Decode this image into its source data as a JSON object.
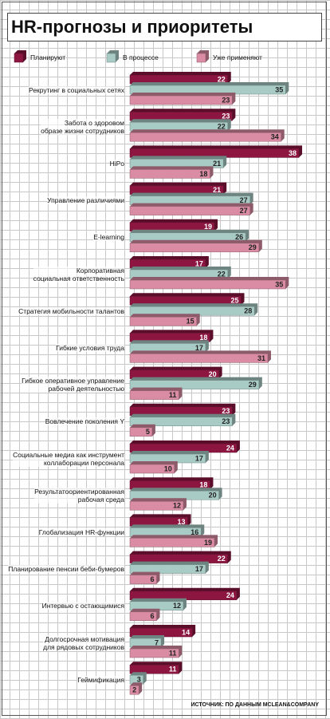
{
  "chart_data": {
    "type": "bar",
    "orientation": "horizontal",
    "title": "HR-прогнозы и приоритеты",
    "source": "ИСТОЧНИК: ПО ДАННЫМ MCLEAN&COMPANY",
    "categories": [
      "Рекрутинг в социальных сетях",
      "Забота о здоровом\nобразе жизни сотрудников",
      "HiPo",
      "Управление различиями",
      "E-learning",
      "Корпоративная\nсоциальная ответственность",
      "Стратегия мобильности талантов",
      "Гибкие условия труда",
      "Гибкое оперативное управление\nрабочей деятельностью",
      "Вовлечение поколения Y",
      "Социальные медиа как инструмент\nколлаборации персонала",
      "Результатоориентированная\nрабочая среда",
      "Глобализация HR-функции",
      "Планирование пенсии беби-бумеров",
      "Интервью с остающимися",
      "Долгосрочная мотивация\nдля рядовых сотрудников",
      "Геймификация"
    ],
    "series": [
      {
        "name": "Планируют",
        "color": "#8c1640",
        "values": [
          22,
          23,
          38,
          21,
          19,
          17,
          25,
          18,
          20,
          23,
          24,
          18,
          13,
          22,
          24,
          14,
          11
        ]
      },
      {
        "name": "В процессе",
        "color": "#a9cbc6",
        "values": [
          35,
          22,
          21,
          27,
          26,
          22,
          28,
          17,
          29,
          23,
          17,
          20,
          16,
          17,
          12,
          7,
          3
        ]
      },
      {
        "name": "Уже применяют",
        "color": "#d98ca3",
        "values": [
          23,
          34,
          18,
          27,
          29,
          35,
          15,
          31,
          11,
          5,
          10,
          12,
          19,
          6,
          6,
          11,
          2
        ]
      }
    ]
  }
}
